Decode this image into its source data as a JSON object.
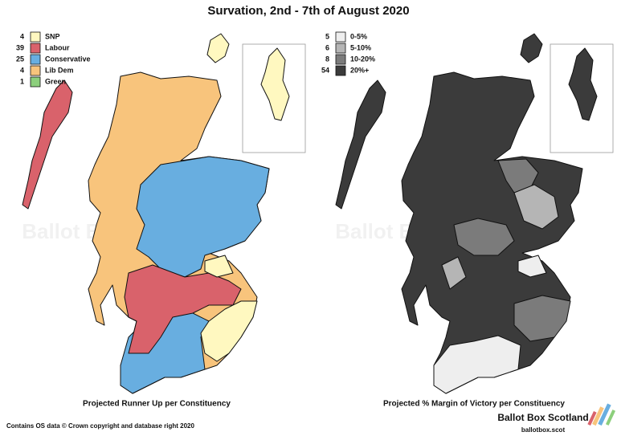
{
  "title": "Survation, 2nd - 7th of August 2020",
  "watermark": "Ballot Box Scotland",
  "left_map": {
    "caption": "Projected Runner Up per Constituency",
    "legend": [
      {
        "count": 4,
        "label": "SNP",
        "color": "#fff8c0"
      },
      {
        "count": 39,
        "label": "Labour",
        "color": "#d9626b"
      },
      {
        "count": 25,
        "label": "Conservative",
        "color": "#68aee0"
      },
      {
        "count": 4,
        "label": "Lib Dem",
        "color": "#f8c47c"
      },
      {
        "count": 1,
        "label": "Green",
        "color": "#8ccf7c"
      }
    ]
  },
  "right_map": {
    "caption": "Projected % Margin of Victory per Constituency",
    "legend": [
      {
        "count": 5,
        "label": "0-5%",
        "color": "#eeeeee"
      },
      {
        "count": 6,
        "label": "5-10%",
        "color": "#b5b5b5"
      },
      {
        "count": 8,
        "label": "10-20%",
        "color": "#7b7b7b"
      },
      {
        "count": 54,
        "label": "20%+",
        "color": "#3b3b3b"
      }
    ]
  },
  "footer": {
    "credit": "Contains OS data © Crown copyright and database right 2020",
    "brand": "Ballot Box Scotland",
    "url": "ballotbox.scot"
  }
}
